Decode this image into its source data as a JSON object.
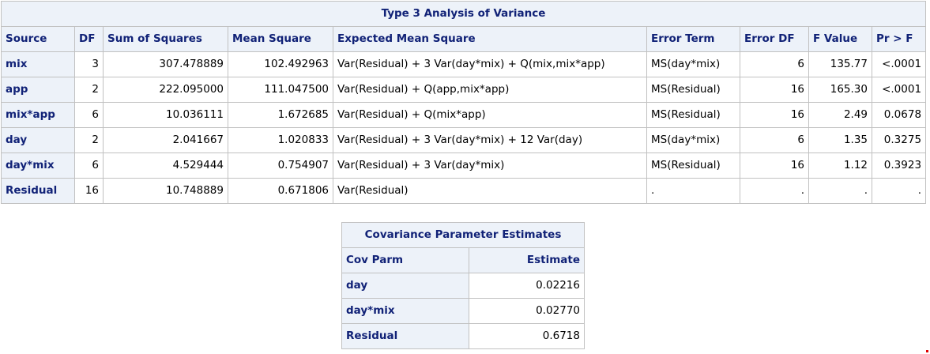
{
  "anova": {
    "caption": "Type 3 Analysis of Variance",
    "headers": [
      "Source",
      "DF",
      "Sum of Squares",
      "Mean Square",
      "Expected Mean Square",
      "Error Term",
      "Error DF",
      "F Value",
      "Pr > F"
    ],
    "rows": [
      [
        "mix",
        "3",
        "307.478889",
        "102.492963",
        "Var(Residual) + 3 Var(day*mix) + Q(mix,mix*app)",
        "MS(day*mix)",
        "6",
        "135.77",
        "<.0001"
      ],
      [
        "app",
        "2",
        "222.095000",
        "111.047500",
        "Var(Residual) + Q(app,mix*app)",
        "MS(Residual)",
        "16",
        "165.30",
        "<.0001"
      ],
      [
        "mix*app",
        "6",
        "10.036111",
        "1.672685",
        "Var(Residual) + Q(mix*app)",
        "MS(Residual)",
        "16",
        "2.49",
        "0.0678"
      ],
      [
        "day",
        "2",
        "2.041667",
        "1.020833",
        "Var(Residual) + 3 Var(day*mix) + 12 Var(day)",
        "MS(day*mix)",
        "6",
        "1.35",
        "0.3275"
      ],
      [
        "day*mix",
        "6",
        "4.529444",
        "0.754907",
        "Var(Residual) + 3 Var(day*mix)",
        "MS(Residual)",
        "16",
        "1.12",
        "0.3923"
      ],
      [
        "Residual",
        "16",
        "10.748889",
        "0.671806",
        "Var(Residual)",
        ".",
        ".",
        ".",
        "."
      ]
    ]
  },
  "cov": {
    "caption": "Covariance Parameter Estimates",
    "headers": [
      "Cov Parm",
      "Estimate"
    ],
    "rows": [
      [
        "day",
        "0.02216"
      ],
      [
        "day*mix",
        "0.02770"
      ],
      [
        "Residual",
        "0.6718"
      ]
    ]
  }
}
